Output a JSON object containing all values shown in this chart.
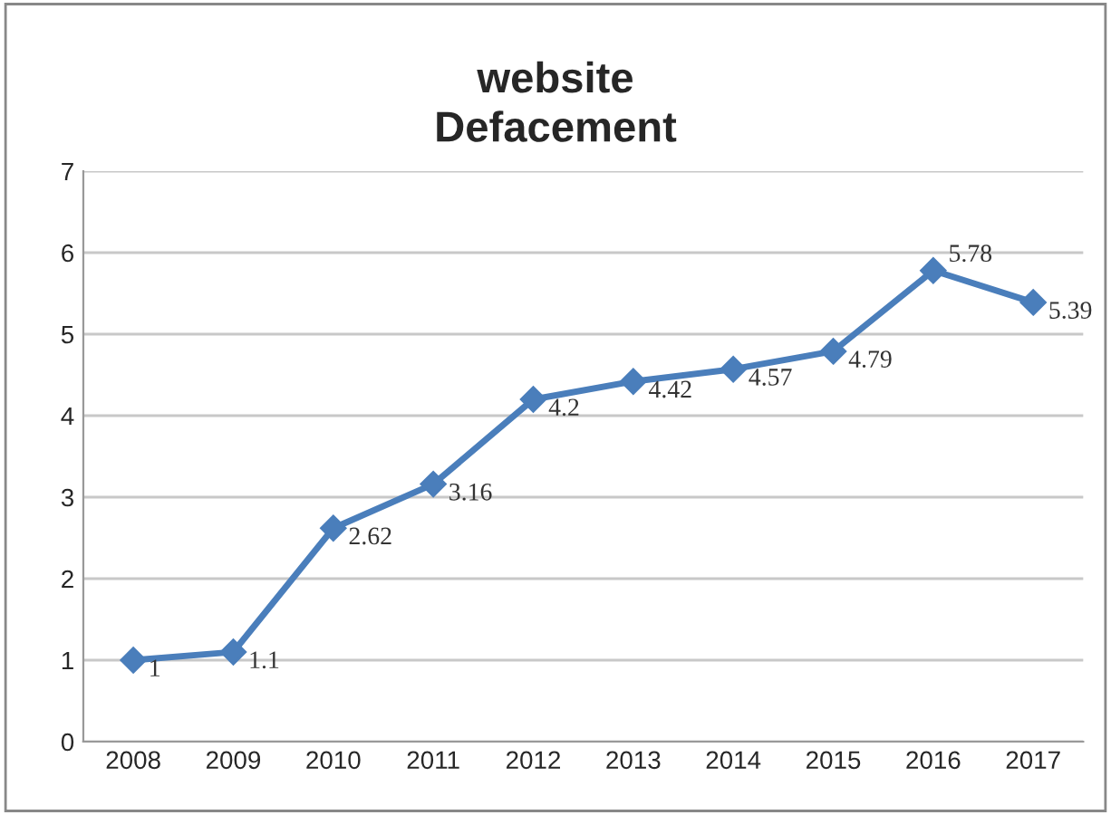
{
  "chart_data": {
    "type": "line",
    "title": "website\nDefacement",
    "categories": [
      "2008",
      "2009",
      "2010",
      "2011",
      "2012",
      "2013",
      "2014",
      "2015",
      "2016",
      "2017"
    ],
    "series": [
      {
        "color": "#4a7ebb",
        "values": [
          1,
          1.1,
          2.62,
          3.16,
          4.2,
          4.42,
          4.57,
          4.79,
          5.78,
          5.39
        ]
      }
    ],
    "ylim": [
      0,
      7
    ],
    "yticks": [
      0,
      1,
      2,
      3,
      4,
      5,
      6,
      7
    ],
    "grid": "y",
    "marker": "diamond",
    "line_style": "solid",
    "data_labels": true
  }
}
